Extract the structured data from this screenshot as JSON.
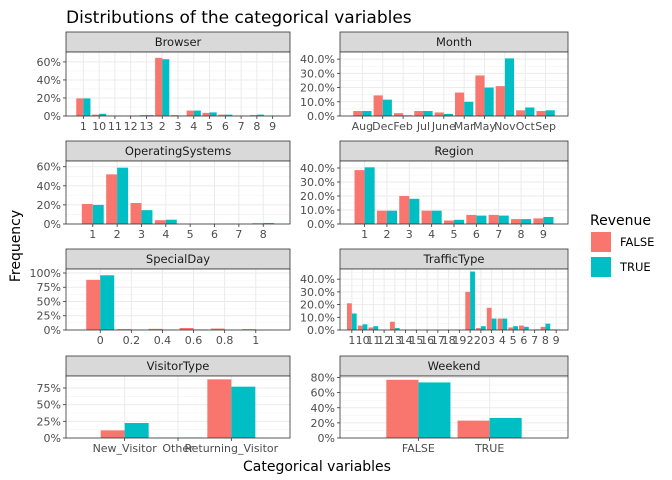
{
  "title": "Distributions of the categorical variables",
  "xlabel": "Categorical variables",
  "ylabel": "Frequency",
  "legend": {
    "title": "Revenue",
    "entries": [
      "FALSE",
      "TRUE"
    ],
    "colors": [
      "#F8766D",
      "#00BFC4"
    ]
  },
  "chart_data": [
    {
      "type": "bar",
      "title": "Browser",
      "categories": [
        "1",
        "10",
        "11",
        "12",
        "13",
        "2",
        "3",
        "4",
        "5",
        "6",
        "7",
        "8",
        "9"
      ],
      "series": [
        {
          "name": "FALSE",
          "values": [
            19.5,
            1.5,
            0.5,
            0.5,
            1.0,
            64.5,
            1.0,
            6.0,
            3.5,
            1.5,
            0.5,
            1.0,
            0.5
          ]
        },
        {
          "name": "TRUE",
          "values": [
            19.5,
            2.5,
            0.5,
            0.5,
            1.0,
            63.0,
            0.5,
            6.0,
            4.0,
            1.5,
            0.5,
            1.5,
            0.5
          ]
        }
      ],
      "yticks": [
        0,
        20,
        40,
        60
      ],
      "ytick_labels": [
        "0%",
        "20%",
        "40%",
        "60%"
      ],
      "ylim": [
        0,
        71
      ]
    },
    {
      "type": "bar",
      "title": "Month",
      "categories": [
        "Aug",
        "Dec",
        "Feb",
        "Jul",
        "June",
        "Mar",
        "May",
        "Nov",
        "Oct",
        "Sep"
      ],
      "series": [
        {
          "name": "FALSE",
          "values": [
            3.5,
            14.5,
            2.0,
            3.5,
            2.5,
            16.5,
            28.5,
            21.0,
            4.0,
            3.5
          ]
        },
        {
          "name": "TRUE",
          "values": [
            3.5,
            11.5,
            0.5,
            3.5,
            1.5,
            10.0,
            20.0,
            40.5,
            6.0,
            4.0
          ]
        }
      ],
      "yticks": [
        0,
        10,
        20,
        30,
        40
      ],
      "ytick_labels": [
        "0.0%",
        "10.0%",
        "20.0%",
        "30.0%",
        "40.0%"
      ],
      "ylim": [
        0,
        45
      ]
    },
    {
      "type": "bar",
      "title": "OperatingSystems",
      "categories": [
        "1",
        "2",
        "3",
        "4",
        "5",
        "6",
        "7",
        "8"
      ],
      "series": [
        {
          "name": "FALSE",
          "values": [
            21.0,
            52.0,
            22.0,
            4.0,
            0.2,
            0.2,
            0.2,
            0.8
          ]
        },
        {
          "name": "TRUE",
          "values": [
            20.0,
            59.0,
            14.5,
            4.5,
            0.1,
            0.1,
            0.1,
            1.0
          ]
        }
      ],
      "yticks": [
        0,
        20,
        40,
        60
      ],
      "ytick_labels": [
        "0%",
        "20%",
        "40%",
        "60%"
      ],
      "ylim": [
        0,
        66
      ]
    },
    {
      "type": "bar",
      "title": "Region",
      "categories": [
        "1",
        "2",
        "3",
        "4",
        "5",
        "6",
        "7",
        "8",
        "9"
      ],
      "series": [
        {
          "name": "FALSE",
          "values": [
            38.5,
            9.5,
            20.0,
            9.5,
            2.5,
            6.5,
            6.5,
            3.5,
            4.0
          ]
        },
        {
          "name": "TRUE",
          "values": [
            40.5,
            9.5,
            18.0,
            9.5,
            3.0,
            6.0,
            6.0,
            3.5,
            5.0
          ]
        }
      ],
      "yticks": [
        0,
        10,
        20,
        30,
        40
      ],
      "ytick_labels": [
        "0.0%",
        "10.0%",
        "20.0%",
        "30.0%",
        "40.0%"
      ],
      "ylim": [
        0,
        45
      ]
    },
    {
      "type": "bar",
      "title": "SpecialDay",
      "categories": [
        "0",
        "0.2",
        "0.4",
        "0.6",
        "0.8",
        "1"
      ],
      "series": [
        {
          "name": "FALSE",
          "values": [
            88.0,
            1.5,
            2.0,
            3.5,
            2.5,
            1.5
          ]
        },
        {
          "name": "TRUE",
          "values": [
            96.0,
            0.5,
            0.5,
            1.0,
            0.5,
            0.2
          ]
        }
      ],
      "yticks": [
        0,
        25,
        50,
        75,
        100
      ],
      "ytick_labels": [
        "0%",
        "25%",
        "50%",
        "75%",
        "100%"
      ],
      "ylim": [
        0,
        107
      ]
    },
    {
      "type": "bar",
      "title": "TrafficType",
      "categories": [
        "1",
        "10",
        "11",
        "12",
        "13",
        "14",
        "15",
        "16",
        "17",
        "18",
        "19",
        "2",
        "20",
        "3",
        "4",
        "5",
        "6",
        "7",
        "8",
        "9"
      ],
      "series": [
        {
          "name": "FALSE",
          "values": [
            21.0,
            3.5,
            2.0,
            0.2,
            6.5,
            0.2,
            0.3,
            0.1,
            0.1,
            0.1,
            0.2,
            30.0,
            1.5,
            17.5,
            9.0,
            2.0,
            3.5,
            0.3,
            2.5,
            0.5
          ]
        },
        {
          "name": "TRUE",
          "values": [
            13.0,
            4.5,
            3.0,
            0.1,
            1.5,
            0.1,
            0.1,
            0.1,
            0.1,
            0.1,
            0.1,
            46.0,
            3.0,
            9.0,
            9.0,
            3.0,
            2.5,
            0.5,
            5.0,
            0.3
          ]
        }
      ],
      "yticks": [
        0,
        10,
        20,
        30,
        40
      ],
      "ytick_labels": [
        "0.0%",
        "10.0%",
        "20.0%",
        "30.0%",
        "40.0%"
      ],
      "ylim": [
        0,
        48
      ]
    },
    {
      "type": "bar",
      "title": "VisitorType",
      "categories": [
        "New_Visitor",
        "Other",
        "Returning_Visitor"
      ],
      "series": [
        {
          "name": "FALSE",
          "values": [
            11.5,
            0.5,
            88.0
          ]
        },
        {
          "name": "TRUE",
          "values": [
            22.5,
            0.5,
            77.0
          ]
        }
      ],
      "yticks": [
        0,
        25,
        50,
        75
      ],
      "ytick_labels": [
        "0%",
        "25%",
        "50%",
        "75%"
      ],
      "ylim": [
        0,
        93
      ]
    },
    {
      "type": "bar",
      "title": "Weekend",
      "categories": [
        "FALSE",
        "TRUE"
      ],
      "series": [
        {
          "name": "FALSE",
          "values": [
            77.0,
            23.0
          ]
        },
        {
          "name": "TRUE",
          "values": [
            73.5,
            26.5
          ]
        }
      ],
      "yticks": [
        0,
        20,
        40,
        60,
        80
      ],
      "ytick_labels": [
        "0%",
        "20%",
        "40%",
        "60%",
        "80%"
      ],
      "ylim": [
        0,
        82
      ]
    }
  ]
}
